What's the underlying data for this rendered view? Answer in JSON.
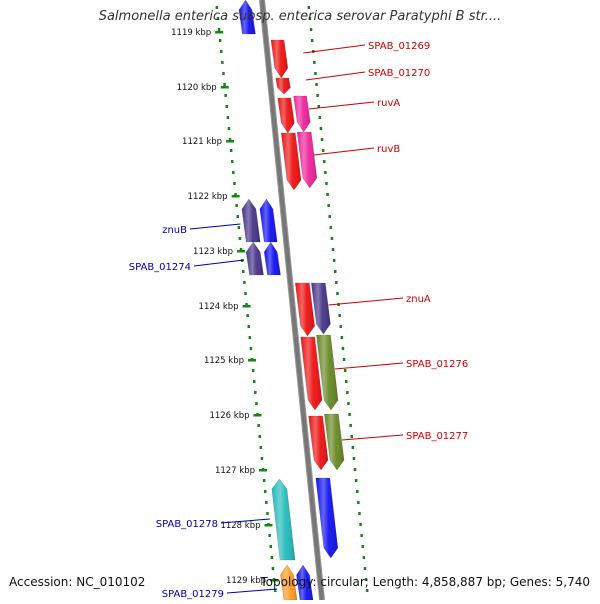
{
  "title": "Salmonella enterica subsp. enterica serovar Paratyphi B str....",
  "accession": "Accession: NC_010102",
  "summary": "Topology: circular; Length: 4,858,887 bp; Genes: 5,740",
  "colors": {
    "red": "#ee1111",
    "magenta": "#ee2299",
    "blue": "#1111ee",
    "purple": "#443388",
    "green": "#668822",
    "cyan": "#22bbbb",
    "orange": "#ff9922",
    "tick": "#118811",
    "backbone": "#777777",
    "fwd_label": "#cc0000",
    "rev_label": "#0000aa"
  },
  "ticks": [
    "1119 kbp",
    "1120 kbp",
    "1121 kbp",
    "1122 kbp",
    "1123 kbp",
    "1124 kbp",
    "1125 kbp",
    "1126 kbp",
    "1127 kbp",
    "1128 kbp",
    "1129 kbp"
  ],
  "forward_labels": [
    "SPAB_01269",
    "SPAB_01270",
    "ruvA",
    "ruvB",
    "znuA",
    "SPAB_01276",
    "SPAB_01277"
  ],
  "reverse_labels": [
    "znuB",
    "SPAB_01274",
    "SPAB_01278",
    "SPAB_01279"
  ]
}
